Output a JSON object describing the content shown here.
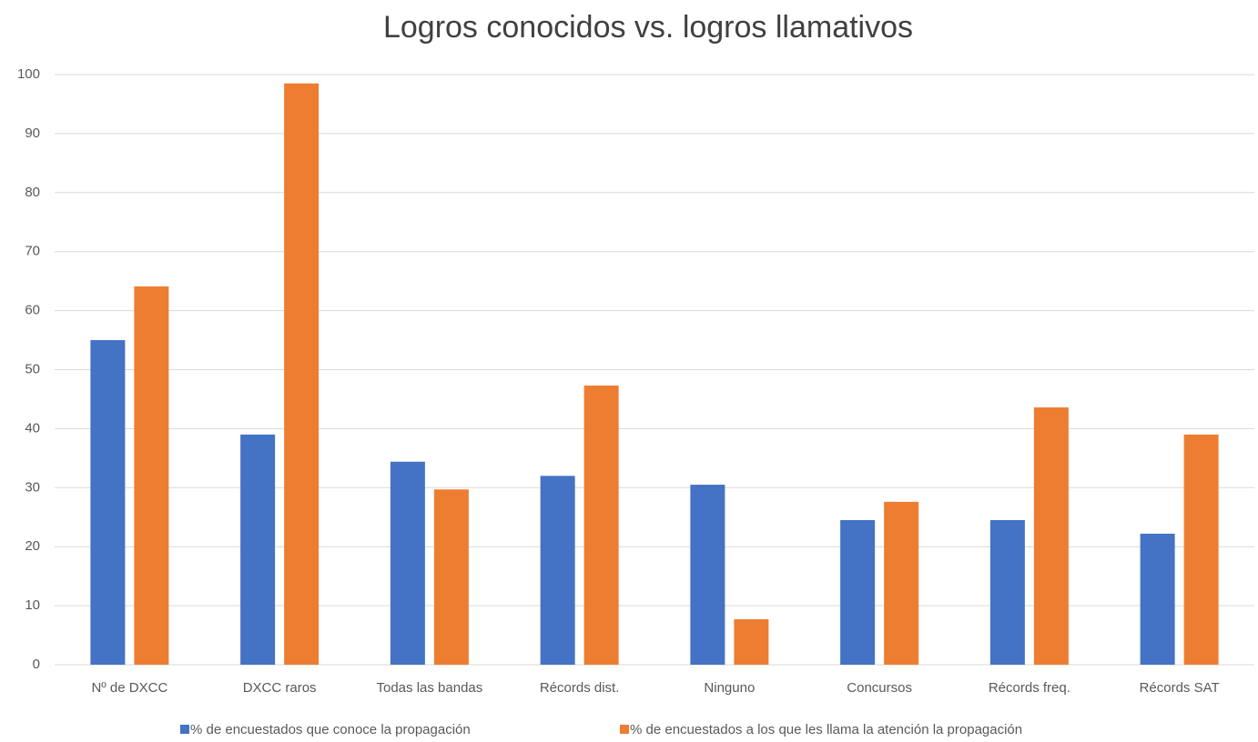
{
  "chart_data": {
    "type": "bar",
    "title": "Logros conocidos vs. logros llamativos",
    "categories": [
      "Nº de DXCC",
      "DXCC raros",
      "Todas las bandas",
      "Récords dist.",
      "Ninguno",
      "Concursos",
      "Récords freq.",
      "Récords SAT"
    ],
    "series": [
      {
        "name": "% de encuestados que conoce la propagación",
        "color": "#4472c4",
        "values": [
          55,
          39,
          34.4,
          32,
          30.5,
          24.5,
          24.5,
          22.2
        ]
      },
      {
        "name": "% de encuestados a los que les llama la atención la propagación",
        "color": "#ed7d31",
        "values": [
          64.1,
          98.5,
          29.7,
          47.3,
          7.7,
          27.6,
          43.6,
          39
        ]
      }
    ],
    "ylim": [
      0,
      100
    ],
    "yticks": [
      0,
      10,
      20,
      30,
      40,
      50,
      60,
      70,
      80,
      90,
      100
    ],
    "grid": true,
    "legend": "bottom"
  }
}
